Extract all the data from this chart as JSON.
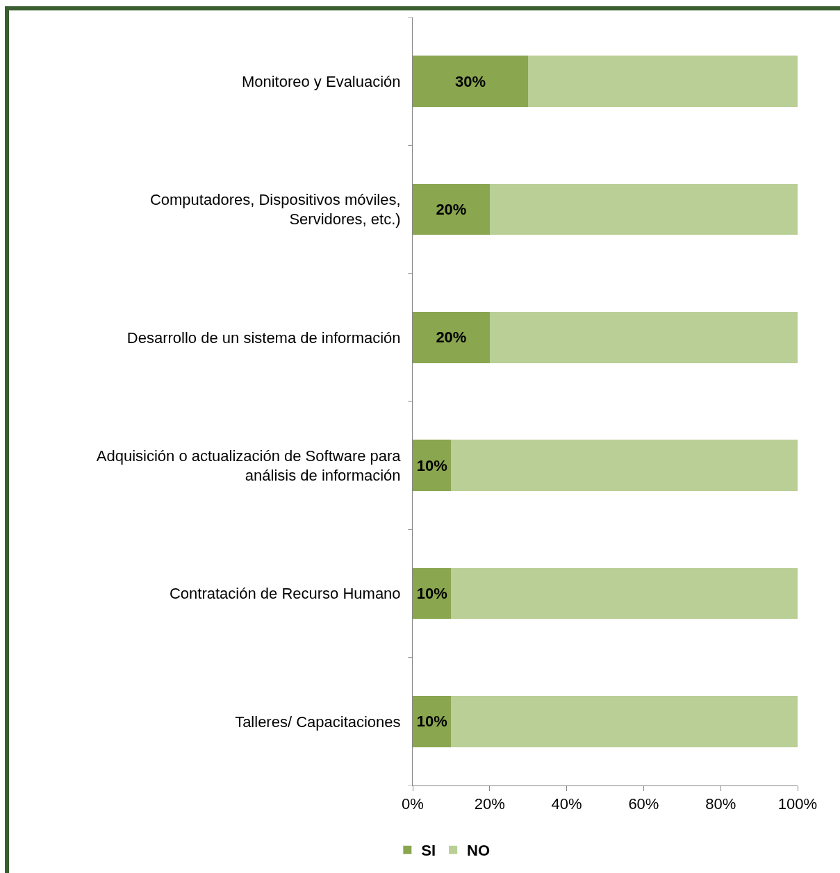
{
  "chart_data": {
    "type": "bar",
    "orientation": "horizontal",
    "stacked": true,
    "categories": [
      "Monitoreo y Evaluación",
      "Computadores, Dispositivos móviles, Servidores, etc.)",
      "Desarrollo de un sistema de información",
      "Adquisición o actualización de Software para análisis de información",
      "Contratación de Recurso Humano",
      "Talleres/ Capacitaciones"
    ],
    "series": [
      {
        "name": "SI",
        "color": "#8aa64f",
        "values": [
          30,
          20,
          20,
          10,
          10,
          10
        ],
        "value_labels": [
          "30%",
          "20%",
          "20%",
          "10%",
          "10%",
          "10%"
        ]
      },
      {
        "name": "NO",
        "color": "#b9cf96",
        "values": [
          70,
          80,
          80,
          90,
          90,
          90
        ]
      }
    ],
    "xlim": [
      0,
      100
    ],
    "xticks": [
      {
        "value": 0,
        "label": "0%"
      },
      {
        "value": 20,
        "label": "20%"
      },
      {
        "value": 40,
        "label": "40%"
      },
      {
        "value": 60,
        "label": "60%"
      },
      {
        "value": 80,
        "label": "80%"
      },
      {
        "value": 100,
        "label": "100%"
      }
    ],
    "grid": false,
    "legend": "bottom"
  }
}
